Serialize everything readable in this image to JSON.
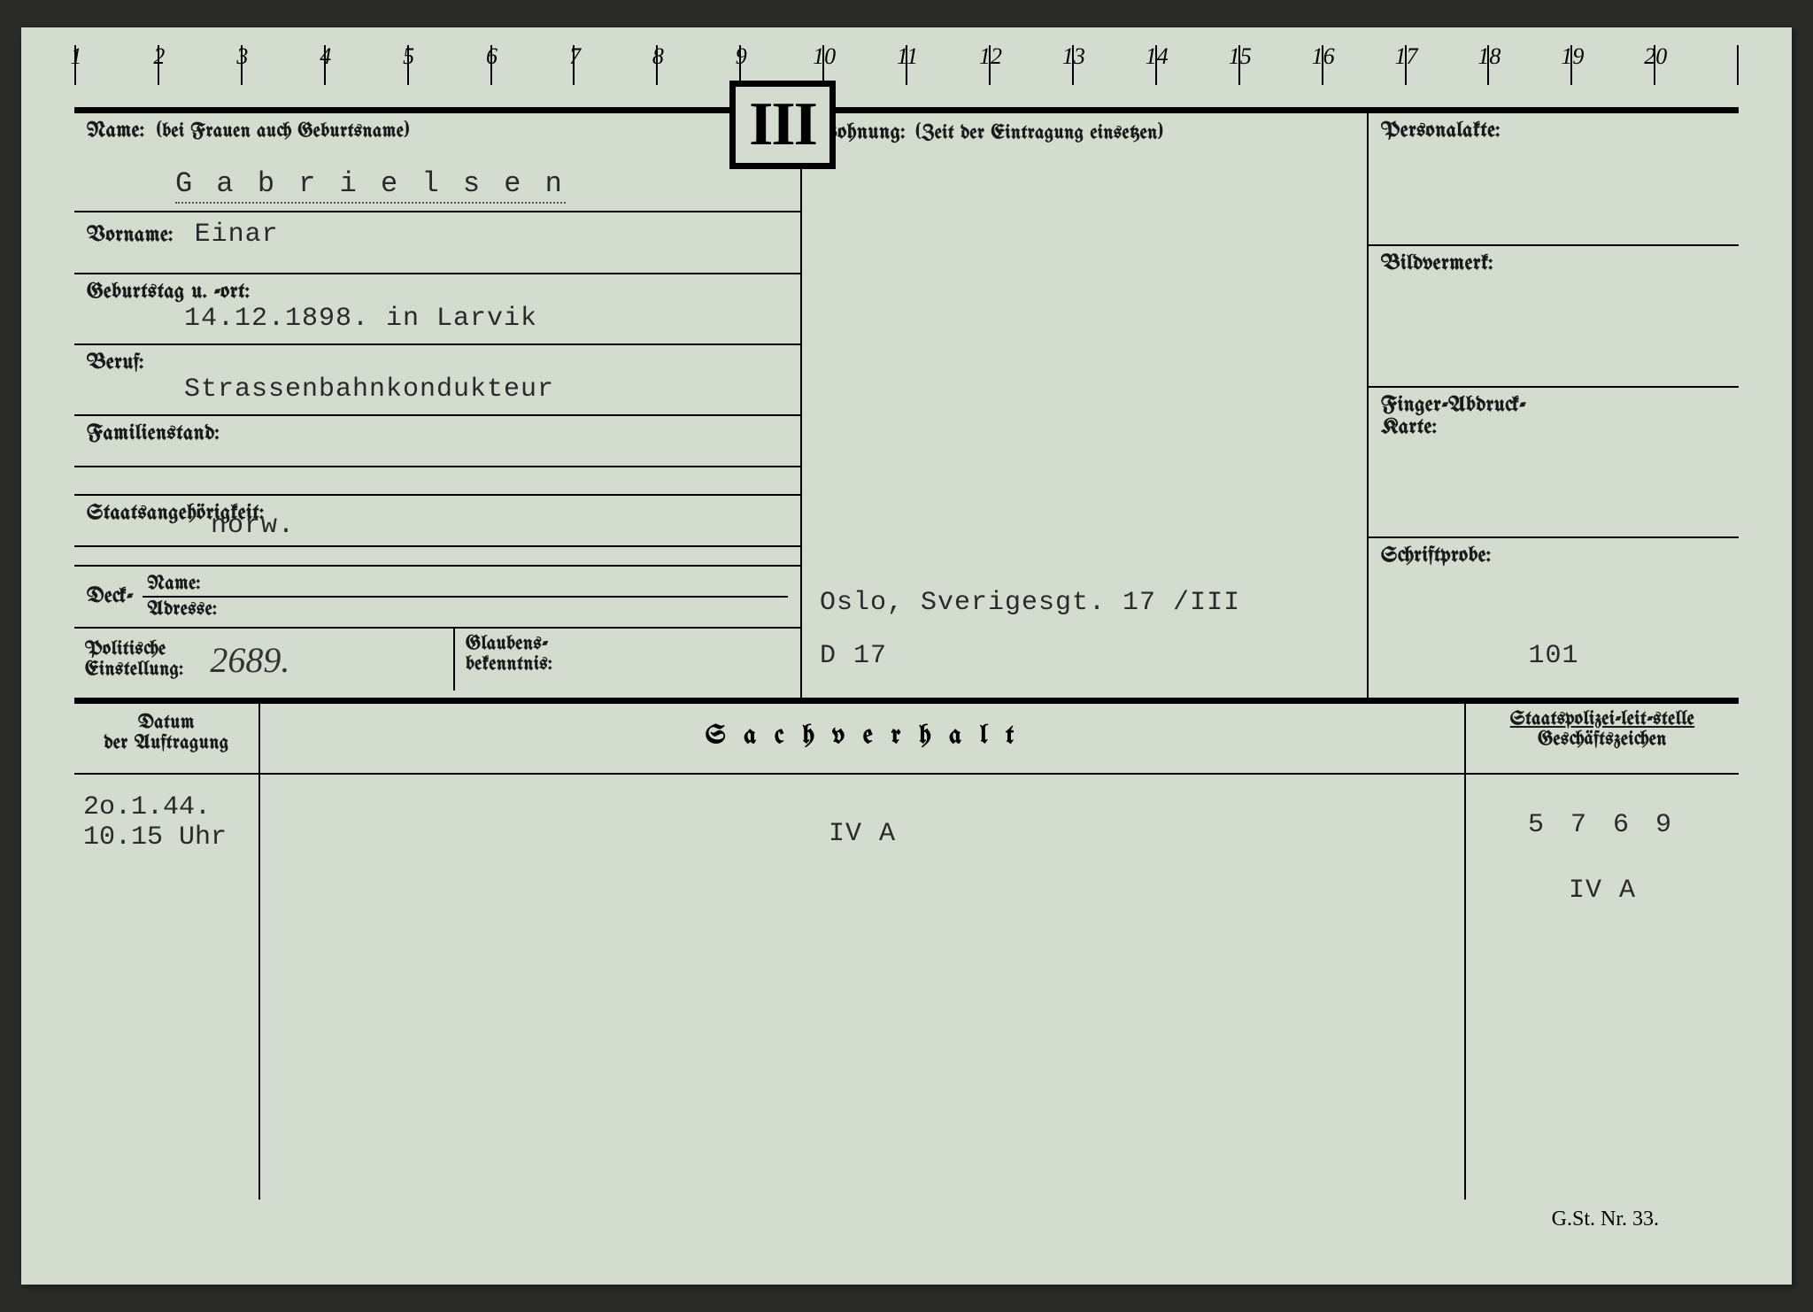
{
  "ruler": {
    "start": 1,
    "end": 20
  },
  "roman": "III",
  "labels": {
    "name": "Name:",
    "name_hint": "(bei Frauen auch Geburtsname)",
    "vorname": "Vorname:",
    "geburtstag": "Geburtstag u. -ort:",
    "beruf": "Beruf:",
    "familienstand": "Familienstand:",
    "staats": "Staatsangehörigkeit:",
    "deck": "Deck-",
    "deck_name": "Name:",
    "deck_adresse": "Adresse:",
    "politische1": "Politische",
    "politische2": "Einstellung:",
    "glaubens1": "Glaubens-",
    "glaubens2": "bekenntnis:",
    "wohnung": "Wohnung:",
    "wohnung_hint": "(Zeit der Eintragung einsetzen)",
    "personalakte": "Personalakte:",
    "bildvermerk": "Bildvermerk:",
    "finger1": "Finger-Abdruck-",
    "finger2": "Karte:",
    "schriftprobe": "Schriftprobe:",
    "datum1": "Datum",
    "datum2": "der Auftragung",
    "sachverhalt": "S a c h v e r h a l t",
    "staatspolizei": "Staatspolizei-leit-stelle",
    "geschaeftszeichen": "Geschäftszeichen"
  },
  "values": {
    "surname": "G a b r i e l s e n",
    "vorname": "Einar",
    "geburtstag": "14.12.1898. in Larvik",
    "beruf": "Strassenbahnkondukteur",
    "staats": "norw.",
    "politische": "2689.",
    "wohnung_line1": "Oslo, Sverigesgt. 17 /III",
    "wohnung_line2": "D 17",
    "schriftprobe": "101",
    "sv_date": "2o.1.44.",
    "sv_time": "10.15 Uhr",
    "sv_body": "IV A",
    "sv_ref1": "5 7 6 9",
    "sv_ref2": "IV A"
  },
  "footer": "G.St. Nr. 33.",
  "colors": {
    "card_bg": "#d4dcd0",
    "page_bg": "#2a2a28",
    "ink": "#1a1a1a",
    "typed": "#2a2a2a"
  }
}
